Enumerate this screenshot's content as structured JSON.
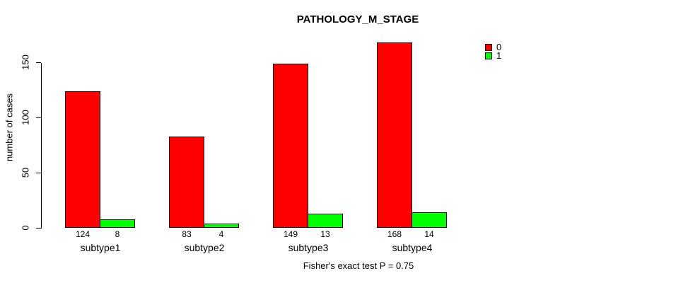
{
  "chart_data": {
    "type": "bar",
    "title": "PATHOLOGY_M_STAGE",
    "ylabel": "number of cases",
    "xlabel": "",
    "categories": [
      "subtype1",
      "subtype2",
      "subtype3",
      "subtype4"
    ],
    "series": [
      {
        "name": "0",
        "color": "#FF0000",
        "values": [
          124,
          83,
          149,
          168
        ]
      },
      {
        "name": "1",
        "color": "#00FF00",
        "values": [
          8,
          4,
          13,
          14
        ]
      }
    ],
    "bar_value_labels": [
      [
        124,
        8
      ],
      [
        83,
        4
      ],
      [
        149,
        13
      ],
      [
        168,
        14
      ]
    ],
    "yticks": [
      0,
      50,
      100,
      150
    ],
    "ylim": [
      0,
      168
    ],
    "grid": false,
    "legend_position": "top-right",
    "caption": "Fisher's exact test P = 0.75"
  },
  "colors": {
    "background": "#FFFFFF",
    "axis": "#000000",
    "series0": "#FF0000",
    "series1": "#00FF00"
  }
}
